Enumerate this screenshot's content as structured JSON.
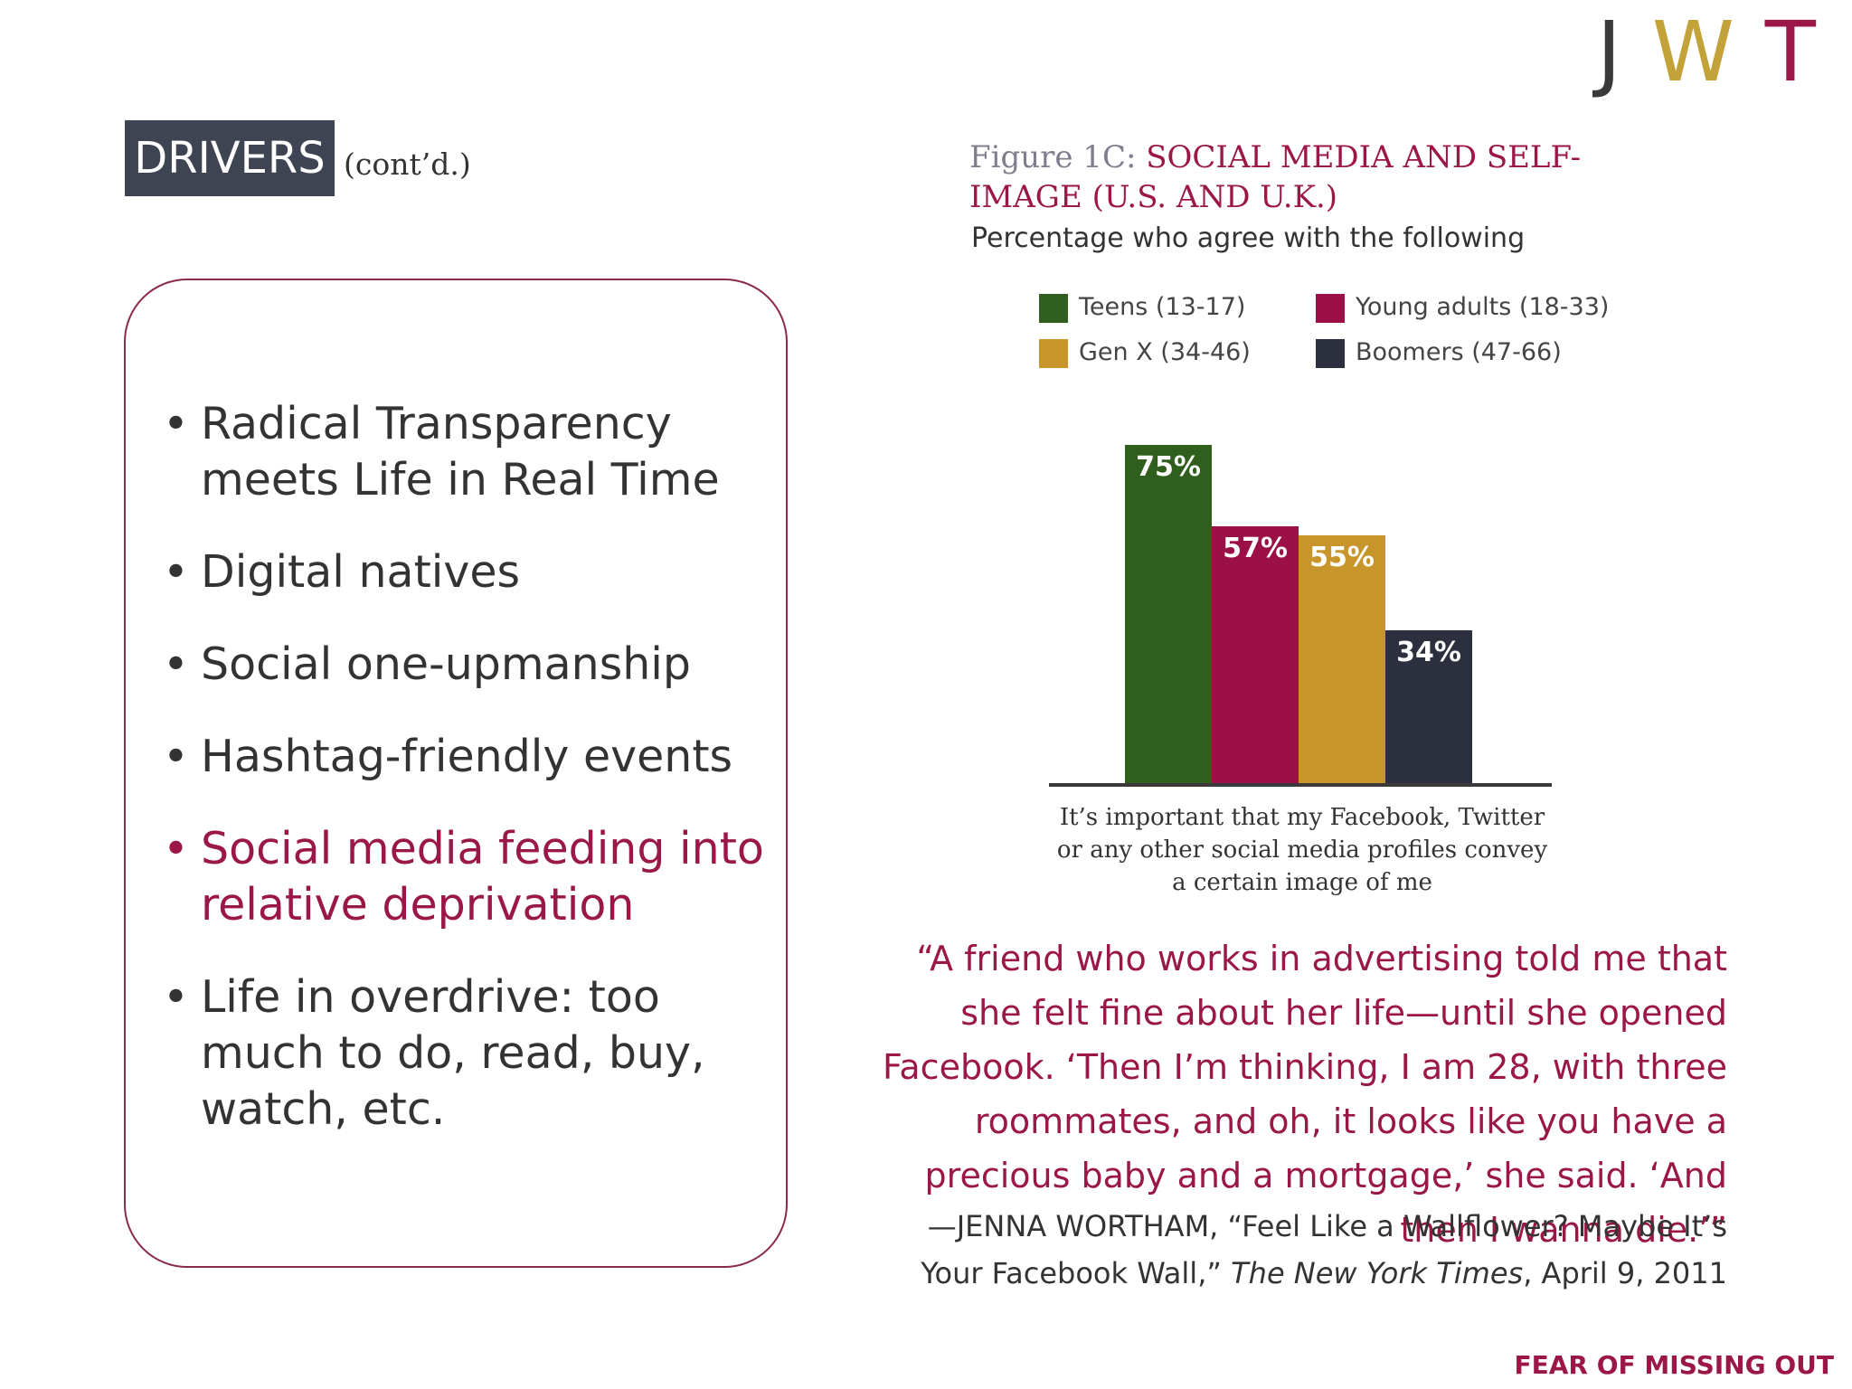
{
  "logo": {
    "j": "J",
    "w": "W",
    "t": "T"
  },
  "header": {
    "badge": "DRIVERS",
    "contd": "(cont’d.)"
  },
  "bullets": [
    {
      "text": "Radical Transparency meets Life in Real Time"
    },
    {
      "text": "Digital natives"
    },
    {
      "text": "Social one-upmanship"
    },
    {
      "text": "Hashtag-friendly events"
    },
    {
      "text": "Social media feeding into relative deprivation",
      "highlight": true
    },
    {
      "text": "Life in overdrive: too much to do, read, buy, watch, etc."
    }
  ],
  "figure": {
    "label": "Figure 1C: ",
    "title": "SOCIAL MEDIA AND SELF-IMAGE (U.S. AND U.K.)",
    "subtitle": "Percentage who agree with the following",
    "xlabel": "It’s important that my Facebook, Twitter or any other social media profiles convey a certain image of me"
  },
  "chart_data": {
    "type": "bar",
    "categories": [
      "It’s important that my Facebook, Twitter or any other social media profiles convey a certain image of me"
    ],
    "series": [
      {
        "name": "Teens (13-17)",
        "values": [
          75
        ],
        "color": "#2f5e1d",
        "label": "75%"
      },
      {
        "name": "Young adults (18-33)",
        "values": [
          57
        ],
        "color": "#9b1047",
        "label": "57%"
      },
      {
        "name": "Gen X (34-46)",
        "values": [
          55
        ],
        "color": "#c8952a",
        "label": "55%"
      },
      {
        "name": "Boomers (47-66)",
        "values": [
          34
        ],
        "color": "#2c2f3d",
        "label": "34%"
      }
    ],
    "ylim": [
      0,
      100
    ],
    "grid": false,
    "legend": "top"
  },
  "quote": {
    "text": "“A friend who works in advertising told me that she felt fine about her life—until she opened Facebook. ‘Then I’m thinking, I am 28, with three roommates, and oh, it looks like you have a precious baby and a mortgage,’ she said. ‘And then I wanna die.’”",
    "attrib_pre": "—JENNA WORTHAM, “Feel Like a Wallflower? Maybe It’s Your Facebook Wall,” ",
    "attrib_source": "The New York Times",
    "attrib_post": ", April 9, 2011"
  },
  "footer": {
    "text": "FEAR OF MISSING OUT"
  }
}
